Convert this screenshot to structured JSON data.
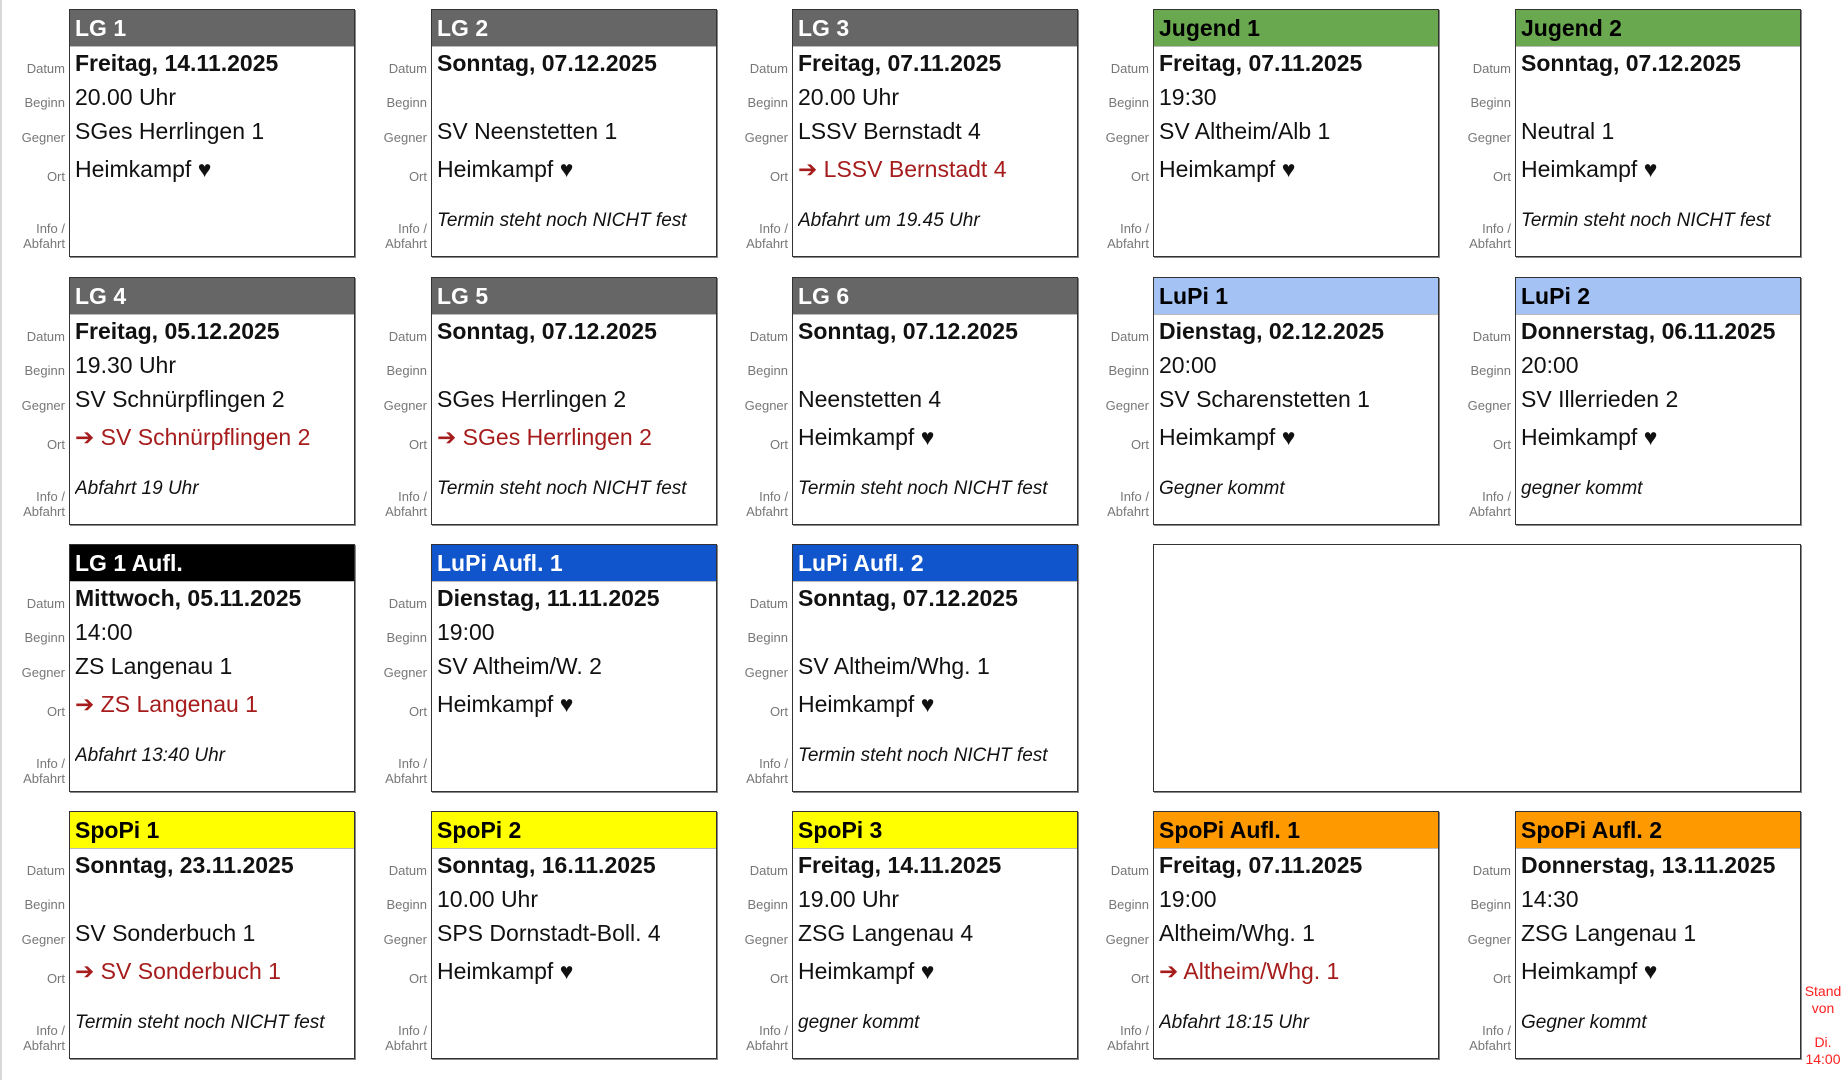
{
  "labels": {
    "datum": "Datum",
    "beginn": "Beginn",
    "gegner": "Gegner",
    "ort": "Ort",
    "info": "Info /",
    "abfahrt": "Abfahrt"
  },
  "heart": "♥",
  "arrow": "➔",
  "colors": {
    "gray": "#666666",
    "green": "#6aa84f",
    "lightblue": "#a4c2f4",
    "black": "#000000",
    "blue": "#1155cc",
    "yellow": "#ffff00",
    "orange": "#ff9900",
    "away_red": "#a61c1c",
    "stand_red": "#ff2020"
  },
  "cards": [
    {
      "title": "LG 1",
      "bg": "#666666",
      "fg": "#ffffff",
      "datum": "Freitag, 14.11.2025",
      "beginn": "20.00 Uhr",
      "gegner": "SGes Herrlingen 1",
      "ort": "Heimkampf",
      "home": true,
      "info": ""
    },
    {
      "title": "LG 2",
      "bg": "#666666",
      "fg": "#ffffff",
      "datum": "Sonntag, 07.12.2025",
      "beginn": "",
      "gegner": "SV Neenstetten 1",
      "ort": "Heimkampf",
      "home": true,
      "info": "Termin steht noch NICHT fest"
    },
    {
      "title": "LG 3",
      "bg": "#666666",
      "fg": "#ffffff",
      "datum": "Freitag, 07.11.2025",
      "beginn": "20.00 Uhr",
      "gegner": "LSSV Bernstadt 4",
      "ort": "LSSV Bernstadt 4",
      "home": false,
      "info": "Abfahrt um 19.45 Uhr"
    },
    {
      "title": "Jugend 1",
      "bg": "#6aa84f",
      "fg": "#000000",
      "datum": "Freitag, 07.11.2025",
      "beginn": "19:30",
      "gegner": "SV Altheim/Alb 1",
      "ort": "Heimkampf",
      "home": true,
      "info": ""
    },
    {
      "title": "Jugend 2",
      "bg": "#6aa84f",
      "fg": "#000000",
      "datum": "Sonntag, 07.12.2025",
      "beginn": "",
      "gegner": "Neutral 1",
      "ort": "Heimkampf",
      "home": true,
      "info": "Termin steht noch NICHT fest"
    },
    {
      "title": "LG 4",
      "bg": "#666666",
      "fg": "#ffffff",
      "datum": "Freitag, 05.12.2025",
      "beginn": "19.30 Uhr",
      "gegner": "SV Schnürpflingen 2",
      "ort": "SV Schnürpflingen 2",
      "home": false,
      "info": "Abfahrt 19 Uhr"
    },
    {
      "title": "LG 5",
      "bg": "#666666",
      "fg": "#ffffff",
      "datum": "Sonntag, 07.12.2025",
      "beginn": "",
      "gegner": "SGes Herrlingen 2",
      "ort": "SGes Herrlingen 2",
      "home": false,
      "info": "Termin steht noch NICHT fest"
    },
    {
      "title": "LG 6",
      "bg": "#666666",
      "fg": "#ffffff",
      "datum": "Sonntag, 07.12.2025",
      "beginn": "",
      "gegner": "Neenstetten 4",
      "ort": "Heimkampf",
      "home": true,
      "info": "Termin steht noch NICHT fest"
    },
    {
      "title": "LuPi 1",
      "bg": "#a4c2f4",
      "fg": "#000000",
      "datum": "Dienstag, 02.12.2025",
      "beginn": "20:00",
      "gegner": "SV Scharenstetten 1",
      "ort": "Heimkampf",
      "home": true,
      "info": "Gegner kommt"
    },
    {
      "title": "LuPi 2",
      "bg": "#a4c2f4",
      "fg": "#000000",
      "datum": "Donnerstag, 06.11.2025",
      "beginn": "20:00",
      "gegner": "SV Illerrieden 2",
      "ort": "Heimkampf",
      "home": true,
      "info": "gegner kommt"
    },
    {
      "title": "LG 1 Aufl.",
      "bg": "#000000",
      "fg": "#ffffff",
      "datum": "Mittwoch, 05.11.2025",
      "beginn": "14:00",
      "gegner": "ZS Langenau 1",
      "ort": "ZS Langenau 1",
      "home": false,
      "info": "Abfahrt 13:40 Uhr"
    },
    {
      "title": "LuPi Aufl. 1",
      "bg": "#1155cc",
      "fg": "#ffffff",
      "datum": "Dienstag, 11.11.2025",
      "beginn": "19:00",
      "gegner": "SV Altheim/W. 2",
      "ort": "Heimkampf",
      "home": true,
      "info": ""
    },
    {
      "title": "LuPi Aufl. 2",
      "bg": "#1155cc",
      "fg": "#ffffff",
      "datum": "Sonntag, 07.12.2025",
      "beginn": "",
      "gegner": "SV Altheim/Whg. 1",
      "ort": "Heimkampf",
      "home": true,
      "info": "Termin steht noch NICHT fest"
    },
    {
      "title": "SpoPi 1",
      "bg": "#ffff00",
      "fg": "#000000",
      "datum": "Sonntag, 23.11.2025",
      "beginn": "",
      "gegner": "SV Sonderbuch 1",
      "ort": "SV Sonderbuch 1",
      "home": false,
      "info": "Termin steht noch NICHT fest"
    },
    {
      "title": "SpoPi 2",
      "bg": "#ffff00",
      "fg": "#000000",
      "datum": "Sonntag, 16.11.2025",
      "beginn": "10.00 Uhr",
      "gegner": "SPS Dornstadt-Boll. 4",
      "ort": "Heimkampf",
      "home": true,
      "info": ""
    },
    {
      "title": "SpoPi 3",
      "bg": "#ffff00",
      "fg": "#000000",
      "datum": "Freitag, 14.11.2025",
      "beginn": "19.00 Uhr",
      "gegner": "ZSG Langenau 4",
      "ort": "Heimkampf",
      "home": true,
      "info": "gegner kommt"
    },
    {
      "title": "SpoPi Aufl. 1",
      "bg": "#ff9900",
      "fg": "#000000",
      "datum": "Freitag, 07.11.2025",
      "beginn": "19:00",
      "gegner": "Altheim/Whg. 1",
      "ort": "Altheim/Whg. 1",
      "home": false,
      "info": "Abfahrt 18:15 Uhr"
    },
    {
      "title": "SpoPi Aufl. 2",
      "bg": "#ff9900",
      "fg": "#000000",
      "datum": "Donnerstag, 13.11.2025",
      "beginn": "14:30",
      "gegner": "ZSG Langenau 1",
      "ort": "Heimkampf",
      "home": true,
      "info": "Gegner kommt"
    }
  ],
  "stand": {
    "line1": "Stand",
    "line2": "von",
    "line3": "Di.",
    "line4": "14:00"
  }
}
